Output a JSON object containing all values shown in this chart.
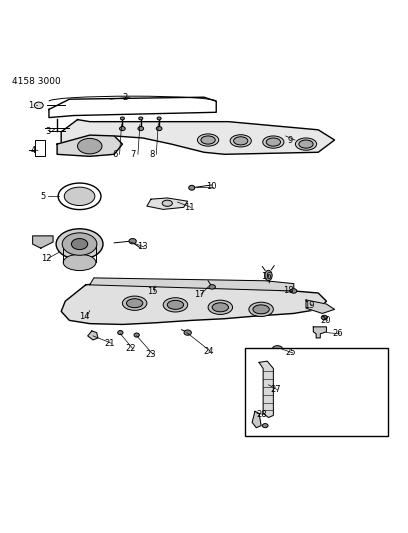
{
  "title": "4158 3000",
  "bg_color": "#ffffff",
  "line_color": "#000000",
  "fig_width": 4.08,
  "fig_height": 5.33,
  "dpi": 100,
  "part_number_text": "4158 3000"
}
